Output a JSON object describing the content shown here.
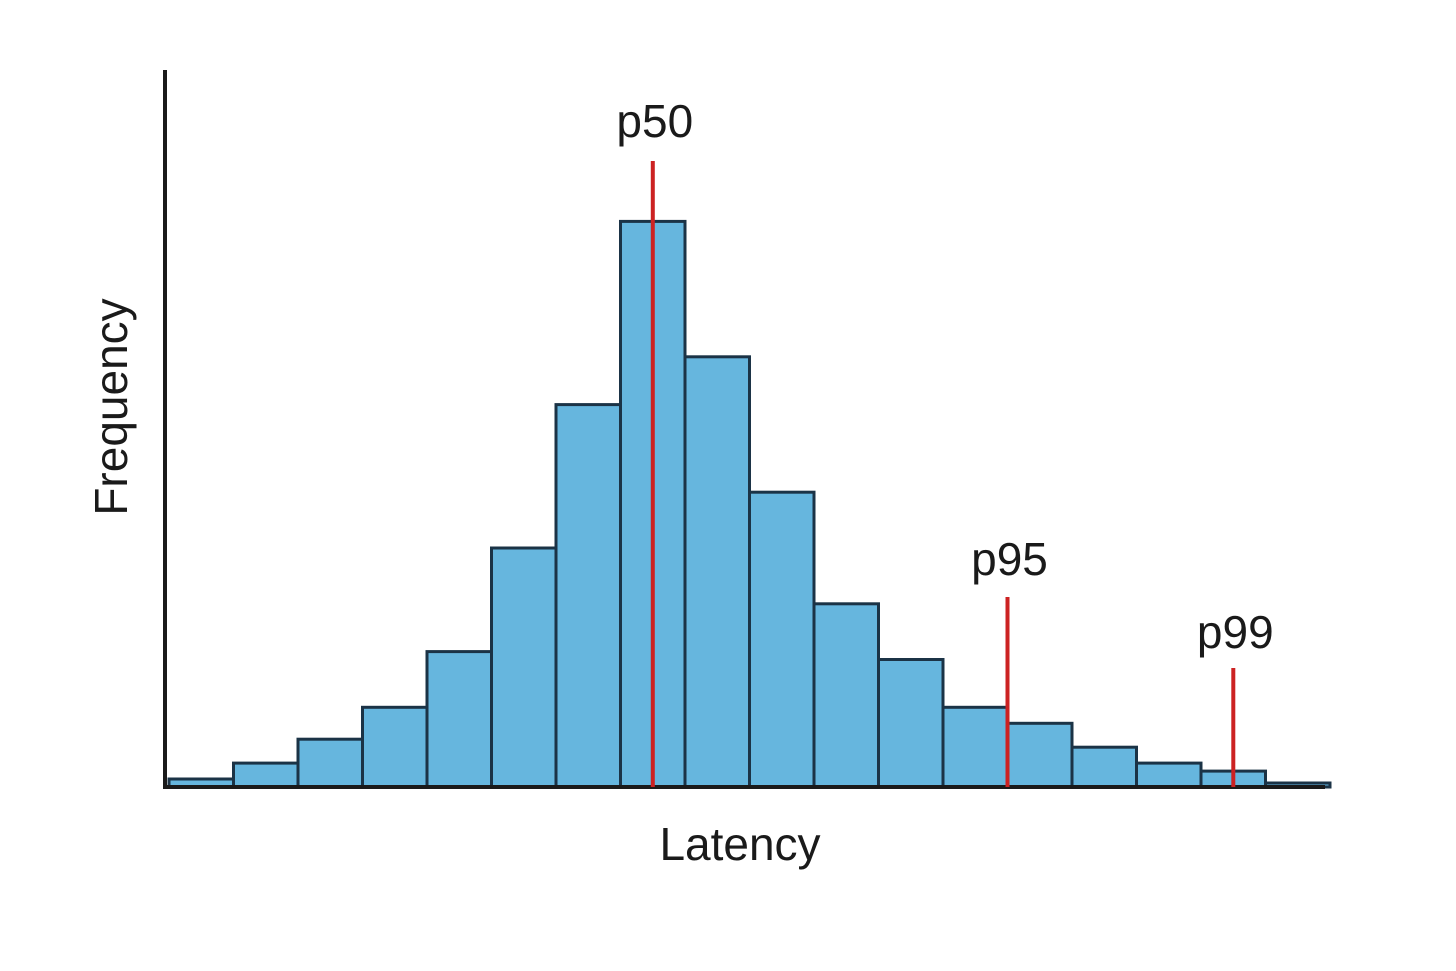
{
  "chart_data": {
    "type": "bar",
    "subtype": "histogram",
    "title": "",
    "xlabel": "Latency",
    "ylabel": "Frequency",
    "bins": 18,
    "values": [
      1,
      3,
      6,
      10,
      17,
      30,
      48,
      71,
      54,
      37,
      23,
      16,
      10,
      8,
      5,
      3,
      2,
      0.5
    ],
    "ylim": [
      0,
      90
    ],
    "grid": false,
    "legend": "none",
    "percentile_markers": [
      {
        "label": "p50",
        "bin_position": 7.5,
        "color": "#cc2222"
      },
      {
        "label": "p95",
        "bin_position": 13.0,
        "color": "#cc2222"
      },
      {
        "label": "p99",
        "bin_position": 16.5,
        "color": "#cc2222"
      }
    ],
    "colors": {
      "bar_fill": "#66b6de",
      "bar_stroke": "#1b3346",
      "axis": "#1a1a1a",
      "marker": "#cc2222"
    }
  }
}
